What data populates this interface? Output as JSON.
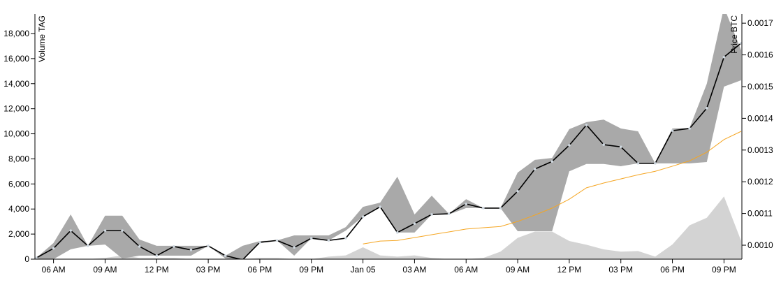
{
  "chart_data": {
    "type": "price",
    "y_label": "Volume TAG",
    "y2_label": "Price BTC",
    "x": [
      "Jan 04 05:00",
      "Jan 04 06:00",
      "Jan 04 07:00",
      "Jan 04 08:00",
      "Jan 04 09:00",
      "Jan 04 10:00",
      "Jan 04 11:00",
      "Jan 04 12:00",
      "Jan 04 13:00",
      "Jan 04 14:00",
      "Jan 04 15:00",
      "Jan 04 16:00",
      "Jan 04 17:00",
      "Jan 04 18:00",
      "Jan 04 19:00",
      "Jan 04 20:00",
      "Jan 04 21:00",
      "Jan 04 22:00",
      "Jan 04 23:00",
      "Jan 05 00:00",
      "Jan 05 01:00",
      "Jan 05 02:00",
      "Jan 05 03:00",
      "Jan 05 04:00",
      "Jan 05 05:00",
      "Jan 05 06:00",
      "Jan 05 07:00",
      "Jan 05 08:00",
      "Jan 05 09:00",
      "Jan 05 10:00",
      "Jan 05 11:00",
      "Jan 05 12:00",
      "Jan 05 13:00",
      "Jan 05 14:00",
      "Jan 05 15:00",
      "Jan 05 16:00",
      "Jan 05 17:00",
      "Jan 05 18:00",
      "Jan 05 19:00",
      "Jan 05 20:00",
      "Jan 05 21:00",
      "Jan 05 22:00"
    ],
    "xlim": [
      "Jan 04 05:00",
      "Jan 05 22:00"
    ],
    "xticks": [
      {
        "value": "Jan 04 06:00",
        "label": "06 AM"
      },
      {
        "value": "Jan 04 09:00",
        "label": "09 AM"
      },
      {
        "value": "Jan 04 12:00",
        "label": "12 PM"
      },
      {
        "value": "Jan 04 15:00",
        "label": "03 PM"
      },
      {
        "value": "Jan 04 18:00",
        "label": "06 PM"
      },
      {
        "value": "Jan 04 21:00",
        "label": "09 PM"
      },
      {
        "value": "Jan 05 00:00",
        "label": "Jan 05"
      },
      {
        "value": "Jan 05 03:00",
        "label": "03 AM"
      },
      {
        "value": "Jan 05 06:00",
        "label": "06 AM"
      },
      {
        "value": "Jan 05 09:00",
        "label": "09 AM"
      },
      {
        "value": "Jan 05 12:00",
        "label": "12 PM"
      },
      {
        "value": "Jan 05 15:00",
        "label": "03 PM"
      },
      {
        "value": "Jan 05 18:00",
        "label": "06 PM"
      },
      {
        "value": "Jan 05 21:00",
        "label": "09 PM"
      }
    ],
    "ylim": [
      0,
      19560
    ],
    "yticks": [
      0,
      {
        "value": 2000,
        "label": "2,000"
      },
      {
        "value": 4000,
        "label": "4,000"
      },
      {
        "value": 6000,
        "label": "6,000"
      },
      {
        "value": 8000,
        "label": "8,000"
      },
      {
        "value": 10000,
        "label": "10,000"
      },
      {
        "value": 12000,
        "label": "12,000"
      },
      {
        "value": 14000,
        "label": "14,000"
      },
      {
        "value": 16000,
        "label": "16,000"
      },
      {
        "value": 18000,
        "label": "18,000"
      }
    ],
    "y2lim": [
      0.000956,
      0.001729
    ],
    "y2ticks": [
      {
        "value": 0.001,
        "label": "0.0010"
      },
      {
        "value": 0.0011,
        "label": "0.0011"
      },
      {
        "value": 0.0012,
        "label": "0.0012"
      },
      {
        "value": 0.0013,
        "label": "0.0013"
      },
      {
        "value": 0.0014,
        "label": "0.0014"
      },
      {
        "value": 0.0015,
        "label": "0.0015"
      },
      {
        "value": 0.0016,
        "label": "0.0016"
      },
      {
        "value": 0.0017,
        "label": "0.0017"
      }
    ],
    "series": [
      {
        "type": "area",
        "color": "#d3d3d3",
        "values": [
          0,
          0,
          0,
          0,
          100,
          300,
          100,
          100,
          100,
          0,
          0,
          0,
          0,
          100,
          100,
          0,
          0,
          200,
          300,
          950,
          300,
          200,
          300,
          100,
          0,
          0,
          100,
          600,
          1700,
          2200,
          2200,
          1450,
          1150,
          780,
          600,
          650,
          200,
          1170,
          2700,
          3300,
          5000,
          1450
        ]
      },
      {
        "type": "band",
        "color": "#a9a9a9",
        "axis": "y2",
        "high": [
          0.00096,
          0.001007,
          0.001097,
          0.000998,
          0.001093,
          0.001093,
          0.001018,
          0.000998,
          0.000998,
          0.000998,
          0.000998,
          0.000967,
          0.000998,
          0.001013,
          0.001015,
          0.001031,
          0.001031,
          0.001031,
          0.001057,
          0.001121,
          0.001134,
          0.001216,
          0.001097,
          0.001156,
          0.001099,
          0.001145,
          0.001117,
          0.001117,
          0.001229,
          0.001269,
          0.001275,
          0.001366,
          0.001388,
          0.001396,
          0.001368,
          0.001359,
          0.001258,
          0.001368,
          0.00137,
          0.001509,
          0.00175,
          0.001615
        ],
        "low": [
          0.000956,
          0.000956,
          0.000987,
          0.000998,
          0.001002,
          0.000958,
          0.000967,
          0.000967,
          0.000967,
          0.000967,
          0.000998,
          0.000958,
          0.000954,
          0.001007,
          0.001015,
          0.000967,
          0.001022,
          0.001015,
          0.001046,
          0.00109,
          0.001121,
          0.00104,
          0.00104,
          0.001097,
          0.001097,
          0.001117,
          0.001117,
          0.001117,
          0.001044,
          0.001044,
          0.001044,
          0.001233,
          0.001256,
          0.001256,
          0.001249,
          0.001258,
          0.001258,
          0.001258,
          0.001258,
          0.001262,
          0.0015,
          0.00152
        ]
      },
      {
        "type": "line",
        "color": "#f5a623",
        "axis": "y2",
        "values": [
          null,
          null,
          null,
          null,
          null,
          null,
          null,
          null,
          null,
          null,
          null,
          null,
          null,
          null,
          null,
          null,
          null,
          null,
          null,
          0.001004,
          0.001013,
          0.001015,
          0.001024,
          0.001033,
          0.001042,
          0.001051,
          0.001055,
          0.001059,
          0.001075,
          0.001095,
          0.001117,
          0.001145,
          0.001181,
          0.001196,
          0.001209,
          0.001222,
          0.001233,
          0.001249,
          0.001266,
          0.001293,
          0.001333,
          0.001359
        ]
      },
      {
        "type": "line",
        "color": "#000000",
        "axis": "y2",
        "markers": true,
        "values": [
          0.00096,
          0.00099,
          0.001046,
          0.000998,
          0.001046,
          0.001046,
          0.000996,
          0.000967,
          0.000996,
          0.000985,
          0.000998,
          0.000967,
          0.000954,
          0.001009,
          0.001015,
          0.000993,
          0.001022,
          0.001015,
          0.001022,
          0.00109,
          0.001121,
          0.00104,
          0.001068,
          0.001097,
          0.001099,
          0.00113,
          0.001117,
          0.001117,
          0.00117,
          0.00124,
          0.001264,
          0.001315,
          0.001379,
          0.001317,
          0.00131,
          0.001258,
          0.001258,
          0.001361,
          0.001368,
          0.001432,
          0.001593,
          0.001637
        ]
      }
    ]
  }
}
